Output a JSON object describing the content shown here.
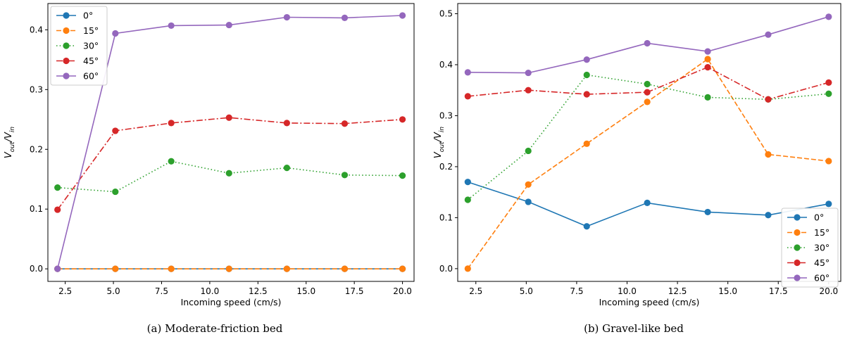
{
  "chart_data": [
    {
      "type": "line",
      "caption": "(a) Moderate-friction bed",
      "xlabel": "Incoming speed (cm/s)",
      "ylabel": {
        "base_v1": "V",
        "sub1": "out",
        "slash": "/",
        "base_v2": "V",
        "sub2": "in"
      },
      "xlim": [
        1.6,
        20.6
      ],
      "ylim": [
        -0.021,
        0.444
      ],
      "xticks": [
        "2.5",
        "5.0",
        "7.5",
        "10.0",
        "12.5",
        "15.0",
        "17.5",
        "20.0"
      ],
      "xtick_values": [
        2.5,
        5.0,
        7.5,
        10.0,
        12.5,
        15.0,
        17.5,
        20.0
      ],
      "yticks": [
        "0.0",
        "0.1",
        "0.2",
        "0.3",
        "0.4"
      ],
      "ytick_values": [
        0.0,
        0.1,
        0.2,
        0.3,
        0.4
      ],
      "legend_position": "upper-left",
      "x": [
        2.1,
        5.1,
        8.0,
        11.0,
        14.0,
        17.0,
        20.0
      ],
      "series": [
        {
          "name": "0°",
          "color": "#1f77b4",
          "dash": "solid",
          "values": [
            0.0,
            0.0,
            0.0,
            0.0,
            0.0,
            0.0,
            0.0
          ]
        },
        {
          "name": "15°",
          "color": "#ff7f0e",
          "dash": "dashed",
          "values": [
            0.0,
            0.0,
            0.0,
            0.0,
            0.0,
            0.0,
            0.0
          ]
        },
        {
          "name": "30°",
          "color": "#2ca02c",
          "dash": "dotted",
          "values": [
            0.136,
            0.129,
            0.18,
            0.16,
            0.169,
            0.157,
            0.156
          ]
        },
        {
          "name": "45°",
          "color": "#d62728",
          "dash": "dashdot",
          "values": [
            0.099,
            0.231,
            0.244,
            0.253,
            0.244,
            0.243,
            0.25
          ]
        },
        {
          "name": "60°",
          "color": "#9467bd",
          "dash": "solid",
          "values": [
            0.0,
            0.394,
            0.407,
            0.408,
            0.421,
            0.42,
            0.424
          ]
        }
      ]
    },
    {
      "type": "line",
      "caption": "(b) Gravel-like bed",
      "xlabel": "Incoming speed (cm/s)",
      "ylabel": {
        "base_v1": "V",
        "sub1": "out",
        "slash": "/",
        "base_v2": "V",
        "sub2": "in"
      },
      "xlim": [
        1.6,
        20.6
      ],
      "ylim": [
        -0.025,
        0.52
      ],
      "xticks": [
        "2.5",
        "5.0",
        "7.5",
        "10.0",
        "12.5",
        "15.0",
        "17.5",
        "20.0"
      ],
      "xtick_values": [
        2.5,
        5.0,
        7.5,
        10.0,
        12.5,
        15.0,
        17.5,
        20.0
      ],
      "yticks": [
        "0.0",
        "0.1",
        "0.2",
        "0.3",
        "0.4",
        "0.5"
      ],
      "ytick_values": [
        0.0,
        0.1,
        0.2,
        0.3,
        0.4,
        0.5
      ],
      "legend_position": "lower-right",
      "x": [
        2.1,
        5.1,
        8.0,
        11.0,
        14.0,
        17.0,
        20.0
      ],
      "series": [
        {
          "name": "0°",
          "color": "#1f77b4",
          "dash": "solid",
          "values": [
            0.17,
            0.131,
            0.083,
            0.129,
            0.111,
            0.105,
            0.127
          ]
        },
        {
          "name": "15°",
          "color": "#ff7f0e",
          "dash": "dashed",
          "values": [
            0.0,
            0.165,
            0.245,
            0.327,
            0.411,
            0.224,
            0.211
          ]
        },
        {
          "name": "30°",
          "color": "#2ca02c",
          "dash": "dotted",
          "values": [
            0.135,
            0.231,
            0.38,
            0.362,
            0.336,
            0.332,
            0.343
          ]
        },
        {
          "name": "45°",
          "color": "#d62728",
          "dash": "dashdot",
          "values": [
            0.338,
            0.35,
            0.342,
            0.346,
            0.395,
            0.332,
            0.365
          ]
        },
        {
          "name": "60°",
          "color": "#9467bd",
          "dash": "solid",
          "values": [
            0.385,
            0.384,
            0.41,
            0.442,
            0.426,
            0.459,
            0.494
          ]
        }
      ]
    }
  ]
}
